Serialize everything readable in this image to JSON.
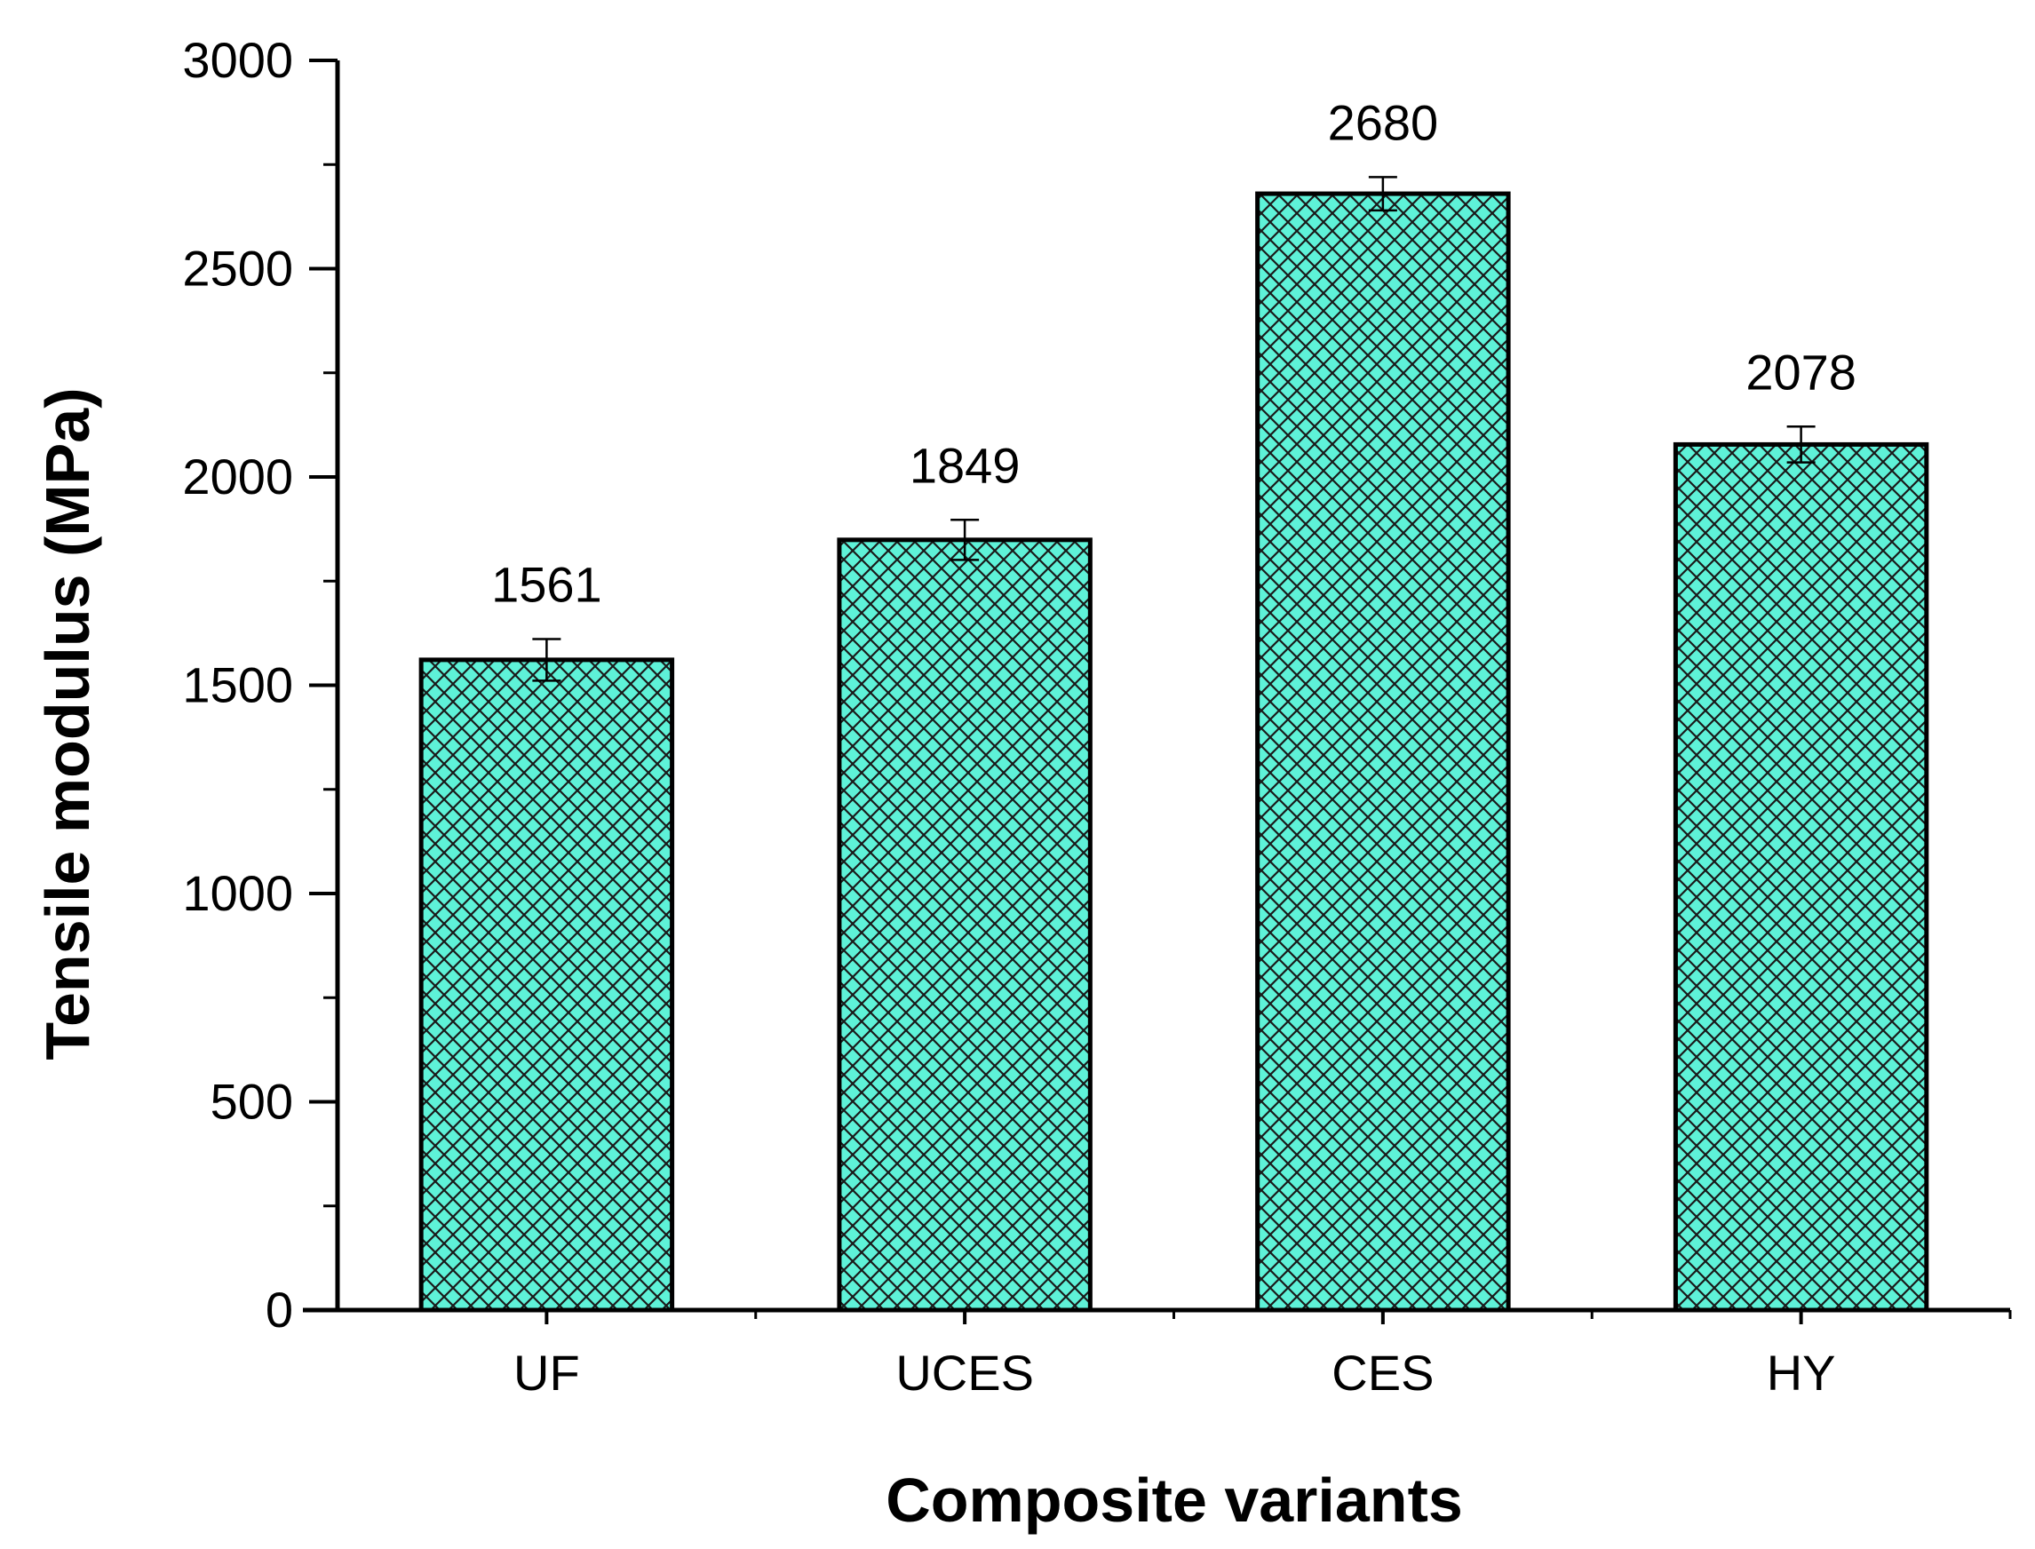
{
  "chart_data": {
    "type": "bar",
    "categories": [
      "UF",
      "UCES",
      "CES",
      "HY"
    ],
    "values": [
      1561,
      1849,
      2680,
      2078
    ],
    "error": [
      50,
      48,
      40,
      43
    ],
    "data_labels": [
      "1561",
      "1849",
      "2680",
      "2078"
    ],
    "title": "",
    "xlabel": "Composite variants",
    "ylabel": "Tensile modulus (MPa)",
    "ylim": [
      0,
      3000
    ],
    "yticks": [
      0,
      500,
      1000,
      1500,
      2000,
      2500,
      3000
    ],
    "ytick_labels": [
      "0",
      "500",
      "1000",
      "1500",
      "2000",
      "2500",
      "3000"
    ],
    "grid": false,
    "legend": "none",
    "bar_fill": "cross-hatch",
    "colors": {
      "bar_fill": "#5ef2d8",
      "hatch": "#1a1a1a",
      "bar_edge": "#000000",
      "axis": "#000000"
    }
  }
}
